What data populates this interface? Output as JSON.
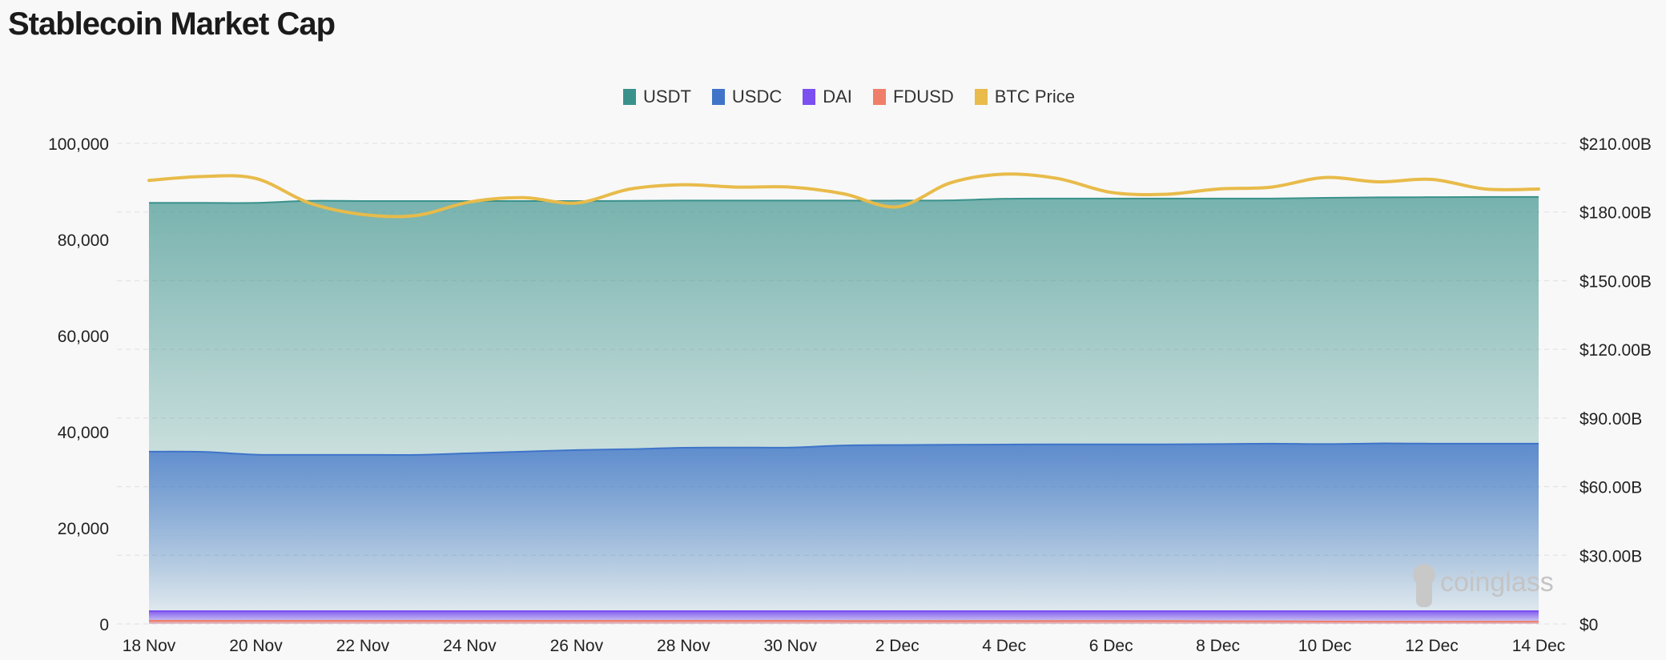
{
  "title": "Stablecoin Market Cap",
  "watermark": "coinglass",
  "chart_data": {
    "type": "area",
    "title": "Stablecoin Market Cap",
    "x": [
      "18 Nov",
      "19 Nov",
      "20 Nov",
      "21 Nov",
      "22 Nov",
      "23 Nov",
      "24 Nov",
      "25 Nov",
      "26 Nov",
      "27 Nov",
      "28 Nov",
      "29 Nov",
      "30 Nov",
      "1 Dec",
      "2 Dec",
      "3 Dec",
      "4 Dec",
      "5 Dec",
      "6 Dec",
      "7 Dec",
      "8 Dec",
      "9 Dec",
      "10 Dec",
      "11 Dec",
      "12 Dec",
      "13 Dec",
      "14 Dec"
    ],
    "x_tick_labels": [
      "18 Nov",
      "20 Nov",
      "22 Nov",
      "24 Nov",
      "26 Nov",
      "28 Nov",
      "30 Nov",
      "2 Dec",
      "4 Dec",
      "6 Dec",
      "8 Dec",
      "10 Dec",
      "12 Dec",
      "14 Dec"
    ],
    "y_left": {
      "ticks": [
        "0",
        "20,000",
        "40,000",
        "60,000",
        "80,000",
        "100,000"
      ],
      "tick_values": [
        0,
        20000,
        40000,
        60000,
        80000,
        100000
      ],
      "range": [
        0,
        100000
      ]
    },
    "y_right": {
      "ticks": [
        "$0",
        "$30.00B",
        "$60.00B",
        "$90.00B",
        "$120.00B",
        "$150.00B",
        "$180.00B",
        "$210.00B"
      ],
      "tick_values": [
        0,
        30,
        60,
        90,
        120,
        150,
        180,
        210
      ],
      "range": [
        0,
        210
      ],
      "unit": "B USD"
    },
    "grid": true,
    "legend_position": "top-center",
    "series": [
      {
        "name": "USDT",
        "axis": "right",
        "color": "#3a918b",
        "type": "area",
        "values": [
          184.0,
          184.0,
          184.0,
          184.9,
          184.8,
          184.8,
          184.8,
          184.8,
          184.8,
          184.9,
          185.0,
          185.0,
          185.0,
          185.0,
          185.0,
          185.1,
          185.8,
          185.9,
          185.9,
          185.9,
          185.9,
          185.9,
          186.2,
          186.4,
          186.5,
          186.6,
          186.6
        ]
      },
      {
        "name": "USDC",
        "axis": "right",
        "color": "#3f74c9",
        "type": "area",
        "values": [
          75.3,
          75.2,
          74.0,
          73.9,
          73.9,
          73.9,
          74.6,
          75.3,
          76.0,
          76.4,
          77.0,
          77.1,
          77.1,
          78.0,
          78.2,
          78.3,
          78.4,
          78.5,
          78.5,
          78.5,
          78.6,
          78.8,
          78.6,
          78.9,
          78.8,
          78.8,
          78.8
        ]
      },
      {
        "name": "DAI",
        "axis": "right",
        "color": "#7b4ff0",
        "type": "area",
        "values": [
          5.6,
          5.6,
          5.6,
          5.6,
          5.6,
          5.6,
          5.6,
          5.6,
          5.6,
          5.6,
          5.6,
          5.6,
          5.6,
          5.6,
          5.6,
          5.6,
          5.6,
          5.6,
          5.6,
          5.6,
          5.6,
          5.6,
          5.6,
          5.6,
          5.6,
          5.6,
          5.6
        ]
      },
      {
        "name": "FDUSD",
        "axis": "right",
        "color": "#ef7f6a",
        "type": "area",
        "values": [
          1.4,
          1.4,
          1.4,
          1.4,
          1.4,
          1.4,
          1.4,
          1.4,
          1.4,
          1.4,
          1.4,
          1.4,
          1.4,
          1.3,
          1.3,
          1.3,
          1.3,
          1.3,
          1.3,
          1.3,
          1.2,
          1.2,
          1.1,
          1.0,
          1.0,
          1.0,
          1.0
        ]
      },
      {
        "name": "BTC Price",
        "axis": "left",
        "color": "#e8bb4a",
        "type": "line",
        "values": [
          92300,
          93100,
          92700,
          87600,
          85200,
          85000,
          87800,
          88700,
          87600,
          90500,
          91400,
          90900,
          90900,
          89500,
          86800,
          91800,
          93600,
          92700,
          89800,
          89400,
          90500,
          90900,
          92900,
          92000,
          92500,
          90500,
          90500
        ]
      }
    ]
  }
}
